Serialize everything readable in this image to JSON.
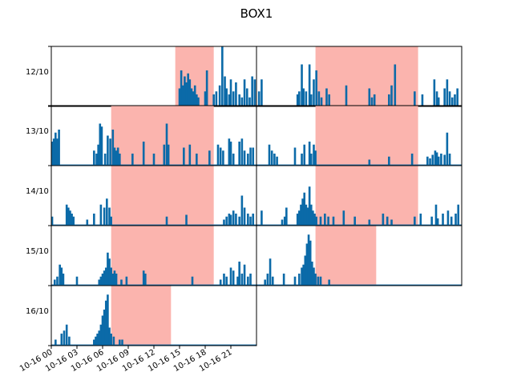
{
  "chart_data": {
    "type": "bar",
    "title": "BOX1",
    "bar_color": "#0b6aa8",
    "shade_color": "#fbb4ae",
    "x_range_hours": [
      0,
      24
    ],
    "x_tick_labels": [
      "10-16 00",
      "10-16 03",
      "10-16 06",
      "10-16 09",
      "10-16 12",
      "10-16 15",
      "10-16 18",
      "10-16 21"
    ],
    "x_tick_hours": [
      0,
      3,
      6,
      9,
      12,
      15,
      18,
      21
    ],
    "y_range": [
      0,
      1
    ],
    "rows": [
      "12/10",
      "13/10",
      "14/10",
      "15/10",
      "16/10"
    ],
    "panels": [
      {
        "row": 0,
        "col": 0,
        "shade": [
          14.5,
          19.0
        ],
        "bars": [
          [
            15.0,
            0.3
          ],
          [
            15.2,
            0.6
          ],
          [
            15.4,
            0.35
          ],
          [
            15.6,
            0.5
          ],
          [
            15.8,
            0.4
          ],
          [
            16.0,
            0.55
          ],
          [
            16.2,
            0.45
          ],
          [
            16.4,
            0.3
          ],
          [
            16.6,
            0.25
          ],
          [
            16.8,
            0.35
          ],
          [
            17.0,
            0.2
          ],
          [
            17.2,
            0.15
          ],
          [
            18.0,
            0.25
          ],
          [
            18.2,
            0.6
          ],
          [
            19.0,
            0.2
          ],
          [
            19.3,
            0.25
          ],
          [
            19.7,
            0.35
          ],
          [
            20.0,
            1.0
          ],
          [
            20.3,
            0.5
          ],
          [
            20.5,
            0.3
          ],
          [
            20.8,
            0.2
          ],
          [
            21.0,
            0.45
          ],
          [
            21.3,
            0.25
          ],
          [
            21.6,
            0.4
          ],
          [
            22.0,
            0.2
          ],
          [
            22.3,
            0.15
          ],
          [
            22.6,
            0.45
          ],
          [
            22.9,
            0.3
          ],
          [
            23.2,
            0.15
          ],
          [
            23.5,
            0.5
          ],
          [
            23.8,
            0.45
          ]
        ]
      },
      {
        "row": 0,
        "col": 1,
        "shade": [
          6.9,
          18.9
        ],
        "bars": [
          [
            0.3,
            0.25
          ],
          [
            0.6,
            0.45
          ],
          [
            4.8,
            0.2
          ],
          [
            5.0,
            0.25
          ],
          [
            5.3,
            0.7
          ],
          [
            5.5,
            0.3
          ],
          [
            5.8,
            0.25
          ],
          [
            6.2,
            0.7
          ],
          [
            6.4,
            0.2
          ],
          [
            6.7,
            0.45
          ],
          [
            7.0,
            0.6
          ],
          [
            7.3,
            0.25
          ],
          [
            7.6,
            0.15
          ],
          [
            8.2,
            0.3
          ],
          [
            8.5,
            0.2
          ],
          [
            10.5,
            0.35
          ],
          [
            13.2,
            0.3
          ],
          [
            13.5,
            0.15
          ],
          [
            13.8,
            0.2
          ],
          [
            15.5,
            0.2
          ],
          [
            15.8,
            0.35
          ],
          [
            16.2,
            0.7
          ],
          [
            18.5,
            0.25
          ],
          [
            19.4,
            0.2
          ],
          [
            20.8,
            0.45
          ],
          [
            21.1,
            0.25
          ],
          [
            21.3,
            0.15
          ],
          [
            22.0,
            0.3
          ],
          [
            22.3,
            0.45
          ],
          [
            22.6,
            0.25
          ],
          [
            22.9,
            0.15
          ],
          [
            23.2,
            0.2
          ],
          [
            23.5,
            0.3
          ]
        ]
      },
      {
        "row": 1,
        "col": 0,
        "shade": [
          7.0,
          19.0
        ],
        "bars": [
          [
            0.1,
            0.4
          ],
          [
            0.3,
            0.45
          ],
          [
            0.5,
            0.55
          ],
          [
            0.7,
            0.45
          ],
          [
            0.9,
            0.6
          ],
          [
            5.0,
            0.25
          ],
          [
            5.3,
            0.2
          ],
          [
            5.5,
            0.35
          ],
          [
            5.7,
            0.7
          ],
          [
            5.9,
            0.65
          ],
          [
            6.3,
            0.2
          ],
          [
            6.6,
            0.5
          ],
          [
            6.9,
            0.45
          ],
          [
            7.2,
            0.6
          ],
          [
            7.4,
            0.3
          ],
          [
            7.6,
            0.25
          ],
          [
            7.8,
            0.3
          ],
          [
            8.0,
            0.2
          ],
          [
            9.5,
            0.2
          ],
          [
            10.8,
            0.4
          ],
          [
            12.0,
            0.2
          ],
          [
            13.2,
            0.35
          ],
          [
            13.5,
            0.7
          ],
          [
            13.7,
            0.35
          ],
          [
            15.5,
            0.3
          ],
          [
            16.2,
            0.35
          ],
          [
            17.0,
            0.2
          ],
          [
            18.5,
            0.25
          ],
          [
            19.5,
            0.35
          ],
          [
            19.8,
            0.3
          ],
          [
            20.1,
            0.25
          ],
          [
            20.8,
            0.45
          ],
          [
            21.0,
            0.4
          ],
          [
            21.3,
            0.2
          ],
          [
            22.0,
            0.4
          ],
          [
            22.3,
            0.45
          ],
          [
            22.6,
            0.25
          ],
          [
            23.0,
            0.2
          ],
          [
            23.3,
            0.3
          ],
          [
            23.6,
            0.3
          ]
        ]
      },
      {
        "row": 1,
        "col": 1,
        "shade": [
          6.9,
          18.9
        ],
        "bars": [
          [
            1.5,
            0.35
          ],
          [
            1.8,
            0.25
          ],
          [
            2.1,
            0.2
          ],
          [
            2.4,
            0.15
          ],
          [
            4.5,
            0.3
          ],
          [
            5.3,
            0.2
          ],
          [
            5.6,
            0.35
          ],
          [
            6.2,
            0.4
          ],
          [
            6.4,
            0.2
          ],
          [
            6.7,
            0.35
          ],
          [
            6.9,
            0.25
          ],
          [
            13.2,
            0.1
          ],
          [
            15.5,
            0.15
          ],
          [
            18.2,
            0.2
          ],
          [
            20.0,
            0.15
          ],
          [
            20.3,
            0.12
          ],
          [
            20.6,
            0.18
          ],
          [
            20.9,
            0.25
          ],
          [
            21.1,
            0.22
          ],
          [
            21.3,
            0.15
          ],
          [
            21.6,
            0.2
          ],
          [
            22.0,
            0.18
          ],
          [
            22.3,
            0.55
          ],
          [
            22.6,
            0.2
          ]
        ]
      },
      {
        "row": 2,
        "col": 0,
        "shade": [
          7.0,
          19.0
        ],
        "bars": [
          [
            0.1,
            0.15
          ],
          [
            1.8,
            0.35
          ],
          [
            2.0,
            0.3
          ],
          [
            2.2,
            0.25
          ],
          [
            2.4,
            0.2
          ],
          [
            2.6,
            0.15
          ],
          [
            4.2,
            0.1
          ],
          [
            5.0,
            0.2
          ],
          [
            5.8,
            0.35
          ],
          [
            6.2,
            0.3
          ],
          [
            6.5,
            0.45
          ],
          [
            6.8,
            0.3
          ],
          [
            7.0,
            0.15
          ],
          [
            13.5,
            0.15
          ],
          [
            15.8,
            0.18
          ],
          [
            20.2,
            0.1
          ],
          [
            20.5,
            0.15
          ],
          [
            20.8,
            0.2
          ],
          [
            21.0,
            0.18
          ],
          [
            21.3,
            0.25
          ],
          [
            21.6,
            0.2
          ],
          [
            22.0,
            0.15
          ],
          [
            22.3,
            0.5
          ],
          [
            22.6,
            0.3
          ],
          [
            23.0,
            0.2
          ],
          [
            23.3,
            0.15
          ],
          [
            23.6,
            0.2
          ]
        ]
      },
      {
        "row": 2,
        "col": 1,
        "shade": [
          6.9,
          18.9
        ],
        "bars": [
          [
            0.6,
            0.25
          ],
          [
            3.0,
            0.1
          ],
          [
            3.3,
            0.15
          ],
          [
            3.5,
            0.3
          ],
          [
            4.8,
            0.2
          ],
          [
            5.0,
            0.25
          ],
          [
            5.2,
            0.35
          ],
          [
            5.4,
            0.45
          ],
          [
            5.6,
            0.55
          ],
          [
            5.8,
            0.35
          ],
          [
            6.0,
            0.3
          ],
          [
            6.2,
            0.65
          ],
          [
            6.4,
            0.35
          ],
          [
            6.6,
            0.25
          ],
          [
            6.8,
            0.2
          ],
          [
            7.0,
            0.15
          ],
          [
            7.5,
            0.15
          ],
          [
            8.0,
            0.2
          ],
          [
            8.4,
            0.15
          ],
          [
            9.0,
            0.15
          ],
          [
            10.2,
            0.25
          ],
          [
            11.5,
            0.15
          ],
          [
            13.2,
            0.1
          ],
          [
            14.8,
            0.2
          ],
          [
            15.3,
            0.15
          ],
          [
            15.8,
            0.1
          ],
          [
            18.5,
            0.15
          ],
          [
            19.2,
            0.2
          ],
          [
            20.5,
            0.15
          ],
          [
            21.0,
            0.35
          ],
          [
            21.2,
            0.12
          ],
          [
            21.8,
            0.2
          ],
          [
            22.4,
            0.25
          ],
          [
            22.8,
            0.15
          ],
          [
            23.3,
            0.2
          ],
          [
            23.6,
            0.35
          ]
        ]
      },
      {
        "row": 3,
        "col": 0,
        "shade": [
          7.0,
          19.0
        ],
        "bars": [
          [
            0.4,
            0.1
          ],
          [
            0.7,
            0.15
          ],
          [
            1.0,
            0.35
          ],
          [
            1.2,
            0.3
          ],
          [
            1.4,
            0.2
          ],
          [
            3.0,
            0.15
          ],
          [
            5.6,
            0.1
          ],
          [
            5.8,
            0.15
          ],
          [
            6.0,
            0.2
          ],
          [
            6.2,
            0.25
          ],
          [
            6.4,
            0.3
          ],
          [
            6.6,
            0.55
          ],
          [
            6.8,
            0.45
          ],
          [
            7.0,
            0.3
          ],
          [
            7.2,
            0.2
          ],
          [
            7.4,
            0.25
          ],
          [
            7.6,
            0.2
          ],
          [
            8.2,
            0.1
          ],
          [
            8.8,
            0.15
          ],
          [
            10.8,
            0.25
          ],
          [
            11.0,
            0.2
          ],
          [
            16.5,
            0.15
          ],
          [
            19.8,
            0.1
          ],
          [
            20.2,
            0.2
          ],
          [
            20.5,
            0.15
          ],
          [
            21.0,
            0.3
          ],
          [
            21.3,
            0.25
          ],
          [
            21.8,
            0.15
          ],
          [
            22.0,
            0.4
          ],
          [
            22.3,
            0.2
          ],
          [
            22.6,
            0.35
          ],
          [
            23.0,
            0.15
          ],
          [
            23.3,
            0.2
          ]
        ]
      },
      {
        "row": 3,
        "col": 1,
        "shade": [
          6.9,
          14.0
        ],
        "bars": [
          [
            1.0,
            0.1
          ],
          [
            1.3,
            0.2
          ],
          [
            1.6,
            0.45
          ],
          [
            1.9,
            0.15
          ],
          [
            3.2,
            0.2
          ],
          [
            4.5,
            0.15
          ],
          [
            5.0,
            0.2
          ],
          [
            5.3,
            0.3
          ],
          [
            5.5,
            0.35
          ],
          [
            5.7,
            0.5
          ],
          [
            5.9,
            0.7
          ],
          [
            6.1,
            0.85
          ],
          [
            6.3,
            0.75
          ],
          [
            6.5,
            0.4
          ],
          [
            6.7,
            0.3
          ],
          [
            6.9,
            0.2
          ],
          [
            7.2,
            0.15
          ],
          [
            7.5,
            0.15
          ],
          [
            8.5,
            0.1
          ]
        ]
      },
      {
        "row": 4,
        "col": 0,
        "shade": [
          7.0,
          14.0
        ],
        "bars": [
          [
            0.5,
            0.1
          ],
          [
            1.2,
            0.2
          ],
          [
            1.5,
            0.25
          ],
          [
            1.8,
            0.35
          ],
          [
            2.1,
            0.15
          ],
          [
            5.0,
            0.1
          ],
          [
            5.2,
            0.15
          ],
          [
            5.4,
            0.2
          ],
          [
            5.6,
            0.25
          ],
          [
            5.8,
            0.35
          ],
          [
            6.0,
            0.5
          ],
          [
            6.2,
            0.6
          ],
          [
            6.4,
            0.75
          ],
          [
            6.6,
            0.85
          ],
          [
            6.8,
            0.3
          ],
          [
            7.0,
            0.2
          ],
          [
            7.3,
            0.15
          ],
          [
            8.0,
            0.1
          ],
          [
            8.3,
            0.1
          ]
        ]
      }
    ]
  }
}
